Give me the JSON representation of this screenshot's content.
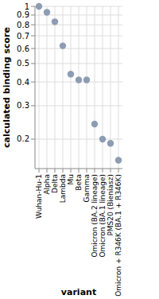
{
  "chart_data": {
    "type": "scatter",
    "x_label": "variant",
    "y_label": "calculated binding score",
    "categories": [
      "Wuhan-Hu-1",
      "Alpha",
      "Delta",
      "Lambda",
      "Mu",
      "Beta",
      "Gamma",
      "Omicron (BA.2 lineage)",
      "Omicron (BA.1 lineage)",
      "PMS20 (Bieniasz)",
      "Omicron + R346K (BA.1 + R346K)"
    ],
    "values": [
      1,
      0.93,
      0.83,
      0.62,
      0.44,
      0.41,
      0.41,
      0.24,
      0.2,
      0.19,
      0.155
    ],
    "color": "#8c9cb3",
    "marker": "circle",
    "log": "y",
    "grid": true,
    "ylim": [
      0.14,
      1
    ],
    "yticks": [
      0.2,
      0.3,
      0.4,
      0.5,
      0.6,
      0.7,
      0.8,
      0.9,
      1
    ]
  }
}
